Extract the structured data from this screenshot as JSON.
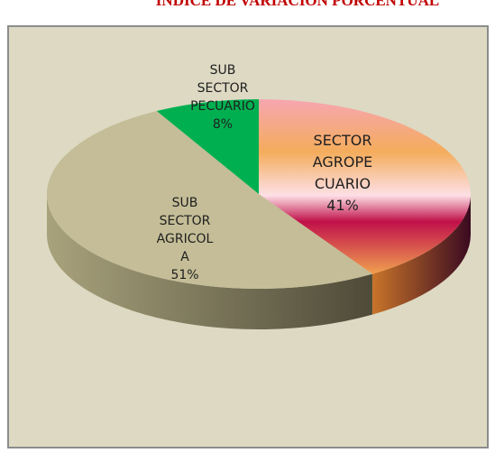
{
  "chart_data": {
    "type": "pie",
    "title": "INDICE DE VARIACION PORCENTUAL",
    "categories": [
      "SECTOR AGROPECUARIO",
      "SUB SECTOR AGRICOLA",
      "SUB SECTOR PECUARIO"
    ],
    "values": [
      41,
      51,
      8
    ],
    "value_labels": [
      "41%",
      "51%",
      "8%"
    ],
    "colors": [
      "#f4a95a",
      "#c4bd97",
      "#00b050"
    ]
  }
}
